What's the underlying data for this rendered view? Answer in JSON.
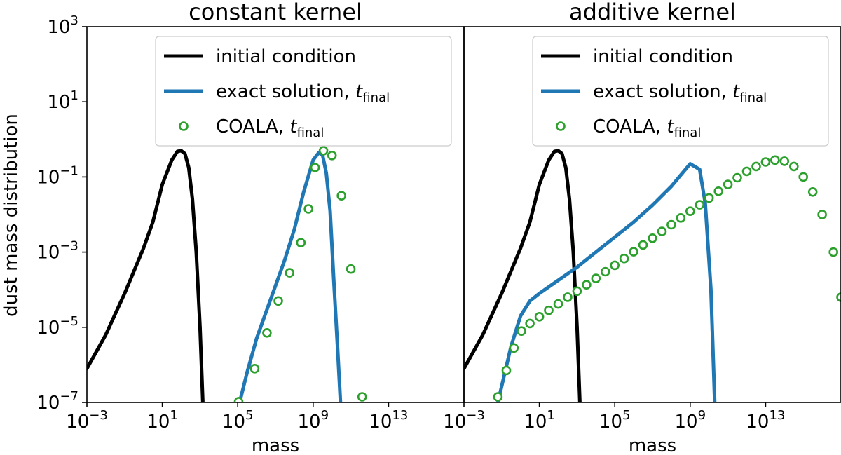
{
  "figure": {
    "ylabel": "dust mass distribution",
    "colors": {
      "initial": "#000000",
      "exact": "#1f77b4",
      "coala": "#2ca02c",
      "axis": "#000000"
    }
  },
  "chart_data": [
    {
      "type": "line",
      "title": "constant kernel",
      "xlabel": "mass",
      "ylabel": "dust mass distribution",
      "xscale": "log",
      "yscale": "log",
      "xlim_log10": [
        -3,
        17
      ],
      "ylim_log10": [
        -7,
        3
      ],
      "xticks": [
        {
          "base": "10",
          "exp": "−3",
          "log": -3
        },
        {
          "base": "10",
          "exp": "1",
          "log": 1
        },
        {
          "base": "10",
          "exp": "5",
          "log": 5
        },
        {
          "base": "10",
          "exp": "9",
          "log": 9
        },
        {
          "base": "10",
          "exp": "13",
          "log": 13
        }
      ],
      "yticks": [
        {
          "base": "10",
          "exp": "−7",
          "log": -7
        },
        {
          "base": "10",
          "exp": "−5",
          "log": -5
        },
        {
          "base": "10",
          "exp": "−3",
          "log": -3
        },
        {
          "base": "10",
          "exp": "−1",
          "log": -1
        },
        {
          "base": "10",
          "exp": "1",
          "log": 1
        },
        {
          "base": "10",
          "exp": "3",
          "log": 3
        }
      ],
      "legend": {
        "placement": "upper right",
        "entries": [
          {
            "key": "initial",
            "text": "initial condition",
            "sub": ""
          },
          {
            "key": "exact",
            "text": "exact solution, ",
            "italic": "t",
            "sub": "final"
          },
          {
            "key": "coala",
            "text": "COALA, ",
            "italic": "t",
            "sub": "final"
          }
        ]
      },
      "series": [
        {
          "name": "initial condition",
          "key": "initial",
          "style": "line",
          "points_log10": [
            [
              -3,
              -6.1
            ],
            [
              -2,
              -5.2
            ],
            [
              -1,
              -4.1
            ],
            [
              0,
              -2.9
            ],
            [
              0.5,
              -2.2
            ],
            [
              1,
              -1.2
            ],
            [
              1.5,
              -0.55
            ],
            [
              1.8,
              -0.32
            ],
            [
              2,
              -0.3
            ],
            [
              2.2,
              -0.38
            ],
            [
              2.4,
              -0.75
            ],
            [
              2.6,
              -1.6
            ],
            [
              2.8,
              -3.0
            ],
            [
              3,
              -5.0
            ],
            [
              3.15,
              -7.0
            ]
          ]
        },
        {
          "name": "exact solution, t_final",
          "key": "exact",
          "style": "line",
          "points_log10": [
            [
              5.1,
              -7.0
            ],
            [
              5.5,
              -6.2
            ],
            [
              6,
              -5.3
            ],
            [
              6.5,
              -4.6
            ],
            [
              7,
              -3.9
            ],
            [
              7.5,
              -3.2
            ],
            [
              8,
              -2.4
            ],
            [
              8.5,
              -1.4
            ],
            [
              9,
              -0.55
            ],
            [
              9.3,
              -0.35
            ],
            [
              9.5,
              -0.42
            ],
            [
              9.7,
              -0.9
            ],
            [
              9.9,
              -1.9
            ],
            [
              10.1,
              -3.8
            ],
            [
              10.3,
              -5.6
            ],
            [
              10.45,
              -7.0
            ]
          ]
        },
        {
          "name": "COALA, t_final",
          "key": "coala",
          "style": "markers",
          "points_log10": [
            [
              5.05,
              -6.98
            ],
            [
              5.9,
              -6.1
            ],
            [
              6.55,
              -5.15
            ],
            [
              7.15,
              -4.3
            ],
            [
              7.75,
              -3.55
            ],
            [
              8.35,
              -2.75
            ],
            [
              8.75,
              -1.85
            ],
            [
              9.1,
              -0.75
            ],
            [
              9.55,
              -0.3
            ],
            [
              10.0,
              -0.43
            ],
            [
              10.5,
              -1.5
            ],
            [
              11.0,
              -3.45
            ],
            [
              11.6,
              -6.85
            ]
          ]
        }
      ]
    },
    {
      "type": "line",
      "title": "additive kernel",
      "xlabel": "mass",
      "xscale": "log",
      "yscale": "log",
      "xlim_log10": [
        -3,
        17
      ],
      "ylim_log10": [
        -7,
        3
      ],
      "xticks": [
        {
          "base": "10",
          "exp": "−3",
          "log": -3
        },
        {
          "base": "10",
          "exp": "1",
          "log": 1
        },
        {
          "base": "10",
          "exp": "5",
          "log": 5
        },
        {
          "base": "10",
          "exp": "9",
          "log": 9
        },
        {
          "base": "10",
          "exp": "13",
          "log": 13
        }
      ],
      "legend": {
        "placement": "upper right",
        "entries": [
          {
            "key": "initial",
            "text": "initial condition",
            "sub": ""
          },
          {
            "key": "exact",
            "text": "exact solution, ",
            "italic": "t",
            "sub": "final"
          },
          {
            "key": "coala",
            "text": "COALA, ",
            "italic": "t",
            "sub": "final"
          }
        ]
      },
      "series": [
        {
          "name": "initial condition",
          "key": "initial",
          "style": "line",
          "points_log10": [
            [
              -3,
              -6.1
            ],
            [
              -2,
              -5.2
            ],
            [
              -1,
              -4.1
            ],
            [
              0,
              -2.9
            ],
            [
              0.5,
              -2.2
            ],
            [
              1,
              -1.2
            ],
            [
              1.5,
              -0.55
            ],
            [
              1.8,
              -0.32
            ],
            [
              2,
              -0.3
            ],
            [
              2.2,
              -0.38
            ],
            [
              2.4,
              -0.75
            ],
            [
              2.6,
              -1.6
            ],
            [
              2.8,
              -3.0
            ],
            [
              3,
              -5.0
            ],
            [
              3.15,
              -7.0
            ]
          ]
        },
        {
          "name": "exact solution, t_final",
          "key": "exact",
          "style": "line",
          "points_log10": [
            [
              -1.2,
              -7.0
            ],
            [
              -0.5,
              -5.5
            ],
            [
              0,
              -4.7
            ],
            [
              0.5,
              -4.3
            ],
            [
              1,
              -4.1
            ],
            [
              2,
              -3.75
            ],
            [
              3,
              -3.4
            ],
            [
              4,
              -3.0
            ],
            [
              5,
              -2.6
            ],
            [
              6,
              -2.2
            ],
            [
              7,
              -1.75
            ],
            [
              8,
              -1.25
            ],
            [
              8.5,
              -0.95
            ],
            [
              9,
              -0.65
            ],
            [
              9.5,
              -0.8
            ],
            [
              9.8,
              -1.7
            ],
            [
              10.1,
              -4.0
            ],
            [
              10.3,
              -7.0
            ]
          ]
        },
        {
          "name": "COALA, t_final",
          "key": "coala",
          "style": "markers",
          "points_log10": [
            [
              -1.2,
              -6.85
            ],
            [
              -0.75,
              -6.15
            ],
            [
              -0.35,
              -5.55
            ],
            [
              0.05,
              -5.1
            ],
            [
              0.5,
              -4.9
            ],
            [
              1.0,
              -4.72
            ],
            [
              1.5,
              -4.55
            ],
            [
              2.0,
              -4.38
            ],
            [
              2.5,
              -4.2
            ],
            [
              3.0,
              -4.04
            ],
            [
              3.5,
              -3.87
            ],
            [
              4.0,
              -3.7
            ],
            [
              4.5,
              -3.52
            ],
            [
              5.0,
              -3.35
            ],
            [
              5.5,
              -3.17
            ],
            [
              6.0,
              -2.99
            ],
            [
              6.5,
              -2.81
            ],
            [
              7.0,
              -2.63
            ],
            [
              7.5,
              -2.45
            ],
            [
              8.0,
              -2.27
            ],
            [
              8.5,
              -2.09
            ],
            [
              9.0,
              -1.91
            ],
            [
              9.5,
              -1.74
            ],
            [
              10.0,
              -1.56
            ],
            [
              10.5,
              -1.38
            ],
            [
              11.0,
              -1.2
            ],
            [
              11.5,
              -1.02
            ],
            [
              12.0,
              -0.85
            ],
            [
              12.5,
              -0.72
            ],
            [
              13.0,
              -0.6
            ],
            [
              13.5,
              -0.55
            ],
            [
              14.0,
              -0.58
            ],
            [
              14.5,
              -0.72
            ],
            [
              15.0,
              -1.0
            ],
            [
              15.5,
              -1.4
            ],
            [
              16.0,
              -2.0
            ],
            [
              16.6,
              -3.0
            ],
            [
              17.0,
              -4.2
            ]
          ]
        }
      ]
    }
  ]
}
